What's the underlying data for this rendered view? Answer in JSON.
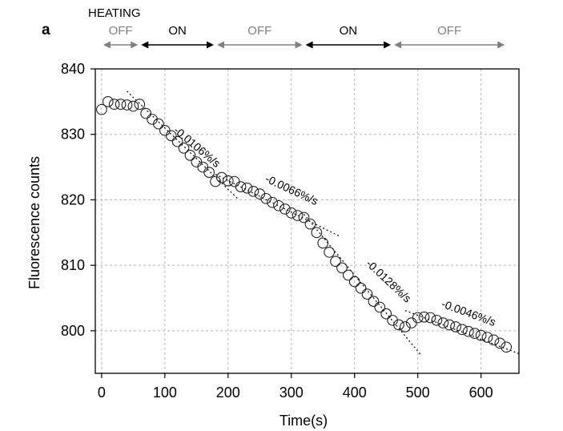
{
  "panel_label": "a",
  "heating": {
    "label": "HEATING",
    "phases": [
      {
        "label": "OFF",
        "x_start": 0,
        "x_end": 60,
        "state": "off"
      },
      {
        "label": "ON",
        "x_start": 60,
        "x_end": 180,
        "state": "on"
      },
      {
        "label": "OFF",
        "x_start": 180,
        "x_end": 320,
        "state": "off"
      },
      {
        "label": "ON",
        "x_start": 320,
        "x_end": 460,
        "state": "on"
      },
      {
        "label": "OFF",
        "x_start": 460,
        "x_end": 640,
        "state": "off"
      }
    ],
    "colors": {
      "on": "#000000",
      "off": "#808080"
    }
  },
  "chart_data": {
    "type": "scatter",
    "xlabel": "Time(s)",
    "ylabel": "Fluorescence counts",
    "xlim": [
      -10,
      660
    ],
    "ylim": [
      793.5,
      840
    ],
    "x_ticks": [
      0,
      100,
      200,
      300,
      400,
      500,
      600
    ],
    "y_ticks": [
      800,
      810,
      820,
      830,
      840
    ],
    "grid": true,
    "series": [
      {
        "marker": "open-circle",
        "x": [
          0,
          10,
          20,
          30,
          40,
          50,
          60,
          70,
          80,
          90,
          100,
          110,
          120,
          130,
          140,
          150,
          160,
          170,
          180,
          190,
          200,
          210,
          220,
          230,
          240,
          250,
          260,
          270,
          280,
          290,
          300,
          310,
          320,
          330,
          340,
          350,
          360,
          370,
          380,
          390,
          400,
          410,
          420,
          430,
          440,
          450,
          460,
          470,
          480,
          490,
          500,
          510,
          520,
          530,
          540,
          550,
          560,
          570,
          580,
          590,
          600,
          610,
          620,
          630,
          640
        ],
        "y": [
          833.8,
          835.0,
          834.6,
          834.6,
          834.5,
          834.3,
          834.6,
          833.2,
          832.3,
          831.6,
          830.6,
          829.8,
          828.9,
          827.9,
          826.8,
          825.8,
          825.0,
          824.2,
          822.8,
          823.4,
          822.9,
          822.8,
          822.0,
          821.8,
          821.3,
          820.9,
          820.2,
          819.6,
          819.1,
          818.6,
          818.0,
          817.6,
          817.3,
          816.3,
          815.0,
          813.4,
          812.0,
          810.6,
          809.6,
          808.5,
          807.5,
          806.5,
          805.6,
          804.5,
          803.6,
          802.6,
          801.6,
          800.9,
          800.6,
          801.2,
          802.0,
          802.1,
          802.0,
          801.6,
          801.2,
          800.9,
          800.6,
          800.2,
          799.9,
          799.6,
          799.3,
          799.0,
          798.6,
          798.1,
          797.5
        ]
      }
    ],
    "fit_lines": [
      {
        "x": [
          40,
          215
        ],
        "y": [
          836.6,
          820.2
        ]
      },
      {
        "x": [
          180,
          375
        ],
        "y": [
          823.9,
          814.5
        ]
      },
      {
        "x": [
          320,
          505
        ],
        "y": [
          817.8,
          796.3
        ]
      },
      {
        "x": [
          480,
          660
        ],
        "y": [
          803.1,
          796.5
        ]
      }
    ],
    "annotations": [
      {
        "text": "-0.0106%/s",
        "x": 150,
        "y": 828.0,
        "angle": 40
      },
      {
        "text": "-0.0066%/s",
        "x": 300,
        "y": 821.4,
        "angle": 25
      },
      {
        "text": "-0.0128%/s",
        "x": 453,
        "y": 807.5,
        "angle": 43
      },
      {
        "text": "-0.0046%/s",
        "x": 580,
        "y": 802.6,
        "angle": 20
      }
    ]
  }
}
